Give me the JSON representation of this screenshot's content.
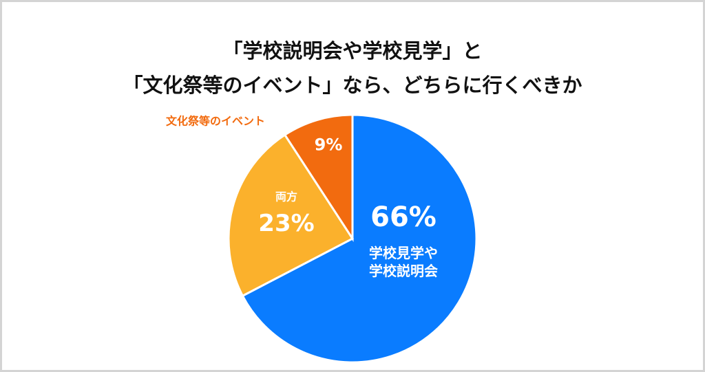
{
  "chart_data": {
    "type": "pie",
    "title": [
      "「学校説明会や学校見学」と",
      "「文化祭等のイベント」なら、どちらに行くべきか"
    ],
    "categories": [
      "学校見学や学校説明会",
      "両方",
      "文化祭等のイベント"
    ],
    "values": [
      66,
      23,
      9
    ],
    "value_labels": [
      "66%",
      "23%",
      "9%"
    ],
    "colors": [
      "#0a7cff",
      "#fbb12c",
      "#f26b0f"
    ]
  }
}
